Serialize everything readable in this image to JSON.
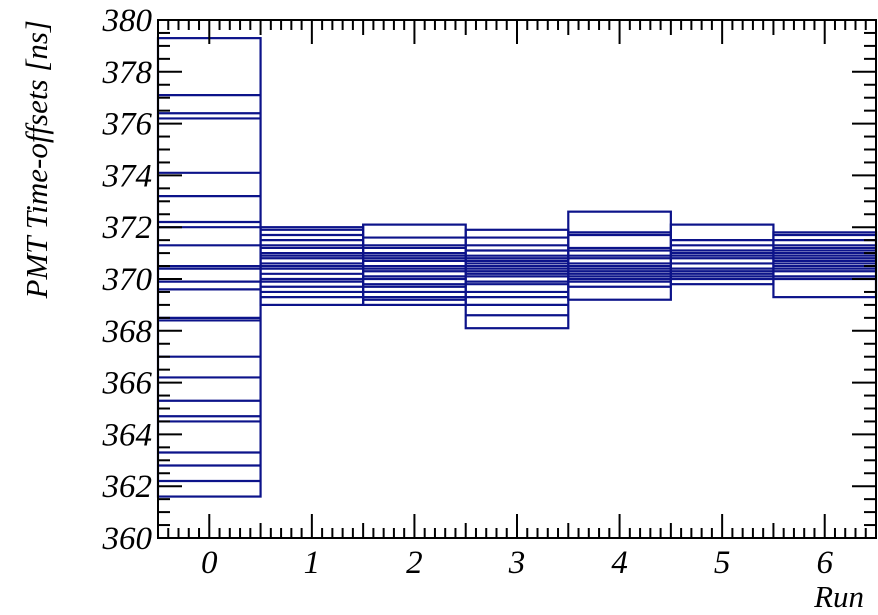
{
  "chart_data": {
    "type": "box",
    "title": "",
    "xlabel": "Run",
    "ylabel": "PMT Time-offsets [ns]",
    "xlim": [
      -0.5,
      6.5
    ],
    "ylim": [
      360,
      380
    ],
    "x_ticks": [
      "0",
      "1",
      "2",
      "3",
      "4",
      "5",
      "6"
    ],
    "y_ticks": [
      "360",
      "362",
      "364",
      "366",
      "368",
      "370",
      "372",
      "374",
      "376",
      "378",
      "380"
    ],
    "grid": false,
    "color": "#0c138a",
    "series": [
      {
        "x": 0,
        "low": 361.6,
        "high": 379.3,
        "levels": [
          377.1,
          376.4,
          376.2,
          374.1,
          373.2,
          372.2,
          372.0,
          371.3,
          370.5,
          370.4,
          369.9,
          369.6,
          368.5,
          368.4,
          367.0,
          366.2,
          365.3,
          364.7,
          364.5,
          363.3,
          362.8,
          362.2
        ]
      },
      {
        "x": 1,
        "low": 369.0,
        "high": 372.0,
        "levels": [
          371.9,
          371.7,
          371.5,
          371.3,
          371.2,
          371.0,
          370.9,
          370.8,
          370.6,
          370.5,
          370.4,
          370.2,
          370.0,
          369.9,
          369.7,
          369.5,
          369.3
        ]
      },
      {
        "x": 2,
        "low": 369.0,
        "high": 372.1,
        "levels": [
          371.6,
          371.3,
          371.2,
          371.0,
          370.9,
          370.8,
          370.7,
          370.5,
          370.4,
          370.3,
          370.1,
          370.0,
          369.8,
          369.7,
          369.5,
          369.3,
          369.2
        ]
      },
      {
        "x": 3,
        "low": 368.1,
        "high": 371.9,
        "levels": [
          371.6,
          371.3,
          371.1,
          370.9,
          370.8,
          370.7,
          370.6,
          370.5,
          370.4,
          370.3,
          370.2,
          370.1,
          369.9,
          369.8,
          369.5,
          369.3,
          369.0,
          368.6
        ]
      },
      {
        "x": 4,
        "low": 369.2,
        "high": 372.6,
        "levels": [
          371.8,
          371.7,
          371.2,
          371.1,
          370.9,
          370.8,
          370.6,
          370.5,
          370.4,
          370.3,
          370.2,
          370.1,
          370.0,
          369.9,
          369.7
        ]
      },
      {
        "x": 5,
        "low": 369.8,
        "high": 372.1,
        "levels": [
          371.5,
          371.3,
          371.1,
          371.0,
          370.9,
          370.8,
          370.6,
          370.4,
          370.3,
          370.2,
          370.1,
          370.0
        ]
      },
      {
        "x": 6,
        "low": 369.3,
        "high": 371.8,
        "levels": [
          371.7,
          371.5,
          371.3,
          371.2,
          371.1,
          371.0,
          370.9,
          370.8,
          370.7,
          370.6,
          370.5,
          370.4,
          370.3,
          370.1,
          370.0
        ]
      }
    ]
  }
}
